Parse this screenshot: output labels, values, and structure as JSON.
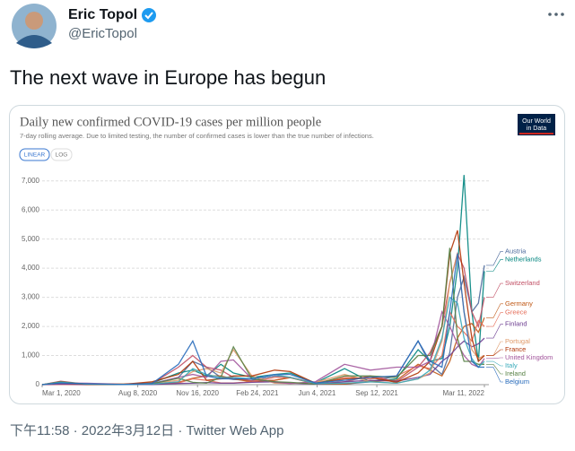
{
  "tweet": {
    "name": "Eric Topol",
    "handle": "@EricTopol",
    "text": "The next wave in Europe has begun",
    "footer": "下午11:58 · 2022年3月12日 · Twitter Web App"
  },
  "chart_data": {
    "type": "line",
    "title": "Daily new confirmed COVID-19 cases per million people",
    "subtitle": "7-day rolling average. Due to limited testing, the number of confirmed cases is lower than the true number of infections.",
    "logo": [
      "Our World",
      "in Data"
    ],
    "scale_buttons": [
      "LINEAR",
      "LOG"
    ],
    "x": [
      "2020-03-01",
      "2020-04-01",
      "2020-05-15",
      "2020-07-15",
      "2020-09-01",
      "2020-10-15",
      "2020-11-08",
      "2020-12-01",
      "2020-12-25",
      "2021-01-15",
      "2021-02-15",
      "2021-03-25",
      "2021-04-20",
      "2021-06-01",
      "2021-07-20",
      "2021-09-01",
      "2021-10-15",
      "2021-11-20",
      "2021-12-10",
      "2021-12-30",
      "2022-01-12",
      "2022-01-25",
      "2022-02-05",
      "2022-02-18",
      "2022-03-01",
      "2022-03-11"
    ],
    "xlim": [
      "2020-03-01",
      "2022-03-11"
    ],
    "xticks": [
      {
        "value": "2020-03-01",
        "label": "Mar 1, 2020"
      },
      {
        "value": "2020-08-08",
        "label": "Aug 8, 2020"
      },
      {
        "value": "2020-11-16",
        "label": "Nov 16, 2020"
      },
      {
        "value": "2021-02-24",
        "label": "Feb 24, 2021"
      },
      {
        "value": "2021-06-04",
        "label": "Jun 4, 2021"
      },
      {
        "value": "2021-09-12",
        "label": "Sep 12, 2021"
      },
      {
        "value": "2022-03-11",
        "label": "Mar 11, 2022"
      }
    ],
    "ylim": [
      0,
      7300
    ],
    "yticks": [
      0,
      {
        "value": 1000,
        "label": "1,000"
      },
      {
        "value": 2000,
        "label": "2,000"
      },
      {
        "value": 3000,
        "label": "3,000"
      },
      {
        "value": 4000,
        "label": "4,000"
      },
      {
        "value": 5000,
        "label": "5,000"
      },
      {
        "value": 6000,
        "label": "6,000"
      },
      {
        "value": 7000,
        "label": "7,000"
      }
    ],
    "grid": true,
    "series": [
      {
        "name": "Austria",
        "color": "#4c6a9c",
        "values": [
          0,
          100,
          5,
          10,
          40,
          250,
          800,
          600,
          250,
          180,
          150,
          300,
          250,
          30,
          20,
          100,
          300,
          1500,
          700,
          350,
          1100,
          3000,
          3700,
          2500,
          2800,
          4100
        ]
      },
      {
        "name": "Netherlands",
        "color": "#00847e",
        "values": [
          0,
          60,
          20,
          5,
          60,
          400,
          500,
          300,
          700,
          400,
          250,
          350,
          400,
          60,
          550,
          100,
          200,
          1200,
          800,
          900,
          2000,
          4000,
          7200,
          2500,
          800,
          3900
        ]
      },
      {
        "name": "Switzerland",
        "color": "#c15065",
        "values": [
          0,
          120,
          10,
          10,
          40,
          600,
          1000,
          600,
          500,
          250,
          130,
          150,
          250,
          30,
          100,
          300,
          100,
          600,
          1100,
          2000,
          3500,
          4500,
          4000,
          2500,
          2000,
          3000
        ]
      },
      {
        "name": "Germany",
        "color": "#c05917",
        "values": [
          0,
          60,
          10,
          5,
          20,
          80,
          220,
          300,
          300,
          200,
          100,
          150,
          240,
          30,
          20,
          120,
          150,
          700,
          500,
          300,
          800,
          1600,
          2000,
          2100,
          1800,
          2300
        ]
      },
      {
        "name": "Greece",
        "color": "#e56e5a",
        "values": [
          0,
          5,
          1,
          2,
          20,
          60,
          200,
          150,
          60,
          60,
          100,
          250,
          250,
          60,
          250,
          200,
          300,
          650,
          550,
          1000,
          2500,
          2000,
          1800,
          1500,
          2200,
          2000
        ]
      },
      {
        "name": "Finland",
        "color": "#6d3e91",
        "values": [
          0,
          20,
          5,
          2,
          5,
          40,
          50,
          70,
          50,
          50,
          80,
          100,
          50,
          20,
          100,
          150,
          120,
          250,
          350,
          800,
          1000,
          1300,
          1500,
          1300,
          1400,
          1600
        ]
      },
      {
        "name": "Portugal",
        "color": "#e09a6a",
        "values": [
          0,
          60,
          30,
          30,
          40,
          150,
          450,
          550,
          400,
          1200,
          300,
          50,
          40,
          80,
          350,
          100,
          50,
          200,
          400,
          1500,
          3500,
          4500,
          2500,
          1200,
          900,
          1000
        ]
      },
      {
        "name": "France",
        "color": "#b13507",
        "values": [
          0,
          70,
          10,
          10,
          100,
          350,
          800,
          150,
          200,
          300,
          300,
          500,
          450,
          50,
          200,
          250,
          80,
          400,
          800,
          2000,
          4500,
          5300,
          3500,
          1600,
          800,
          1000
        ]
      },
      {
        "name": "United Kingdom",
        "color": "#a2559c",
        "values": [
          0,
          60,
          50,
          10,
          30,
          250,
          350,
          250,
          800,
          850,
          200,
          80,
          40,
          100,
          700,
          500,
          600,
          600,
          800,
          2500,
          2000,
          1400,
          1000,
          700,
          600,
          900
        ]
      },
      {
        "name": "Ireland",
        "color": "#578145",
        "values": [
          0,
          100,
          15,
          5,
          30,
          220,
          80,
          50,
          250,
          1300,
          200,
          100,
          80,
          20,
          300,
          300,
          250,
          1000,
          1000,
          2000,
          4700,
          1600,
          800,
          800,
          700,
          700
        ]
      },
      {
        "name": "Italy",
        "color": "#38aaba",
        "values": [
          0,
          80,
          20,
          5,
          20,
          100,
          550,
          350,
          250,
          250,
          200,
          350,
          250,
          40,
          50,
          100,
          50,
          200,
          500,
          1600,
          3000,
          2800,
          1600,
          900,
          600,
          800
        ]
      },
      {
        "name": "Belgium",
        "color": "#286bbb",
        "values": [
          0,
          60,
          30,
          5,
          40,
          700,
          1500,
          300,
          200,
          200,
          200,
          350,
          350,
          60,
          150,
          250,
          300,
          1500,
          800,
          600,
          2500,
          4500,
          2500,
          800,
          600,
          600
        ]
      }
    ]
  }
}
